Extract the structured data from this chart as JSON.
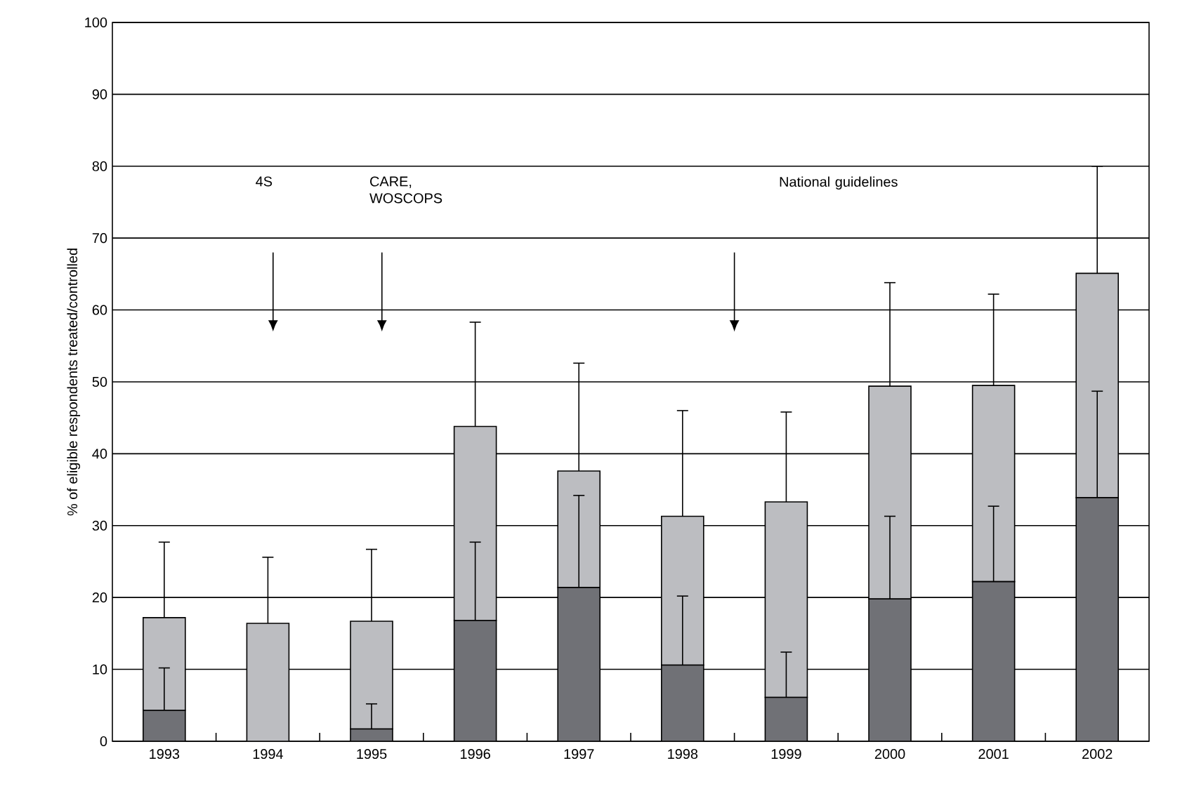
{
  "chart_data": {
    "type": "bar",
    "stacked": true,
    "ylabel": "% of eligible respondents treated/controlled",
    "categories": [
      "1993",
      "1994",
      "1995",
      "1996",
      "1997",
      "1998",
      "1999",
      "2000",
      "2001",
      "2002"
    ],
    "series": [
      {
        "color": "#707176",
        "values": [
          4.3,
          0,
          1.7,
          16.8,
          21.4,
          10.6,
          6.1,
          19.8,
          22.2,
          33.9
        ],
        "errors": [
          [
            4.3,
            10.2
          ],
          null,
          [
            1.7,
            5.2
          ],
          [
            16.8,
            27.7
          ],
          [
            21.4,
            34.2
          ],
          [
            10.6,
            20.2
          ],
          [
            6.1,
            12.4
          ],
          [
            19.8,
            31.3
          ],
          [
            22.2,
            32.7
          ],
          [
            33.9,
            48.7
          ]
        ]
      },
      {
        "color": "#bcbdc1",
        "values": [
          12.9,
          16.4,
          15.0,
          27.0,
          16.2,
          20.7,
          27.2,
          29.6,
          27.3,
          31.2
        ],
        "errors": [
          [
            17.2,
            27.7
          ],
          [
            16.4,
            25.6
          ],
          [
            16.7,
            26.7
          ],
          [
            43.8,
            58.3
          ],
          [
            37.6,
            52.6
          ],
          [
            31.3,
            46.0
          ],
          [
            33.3,
            45.8
          ],
          [
            49.4,
            63.8
          ],
          [
            49.5,
            62.2
          ],
          [
            65.1,
            80.0
          ]
        ]
      }
    ],
    "ylim": [
      0,
      100
    ],
    "yticks": [
      0,
      10,
      20,
      30,
      40,
      50,
      60,
      70,
      80,
      90,
      100
    ],
    "grid": "y",
    "annotations": [
      "4S",
      "CARE, WOSCOPS",
      "National guidelines"
    ]
  }
}
